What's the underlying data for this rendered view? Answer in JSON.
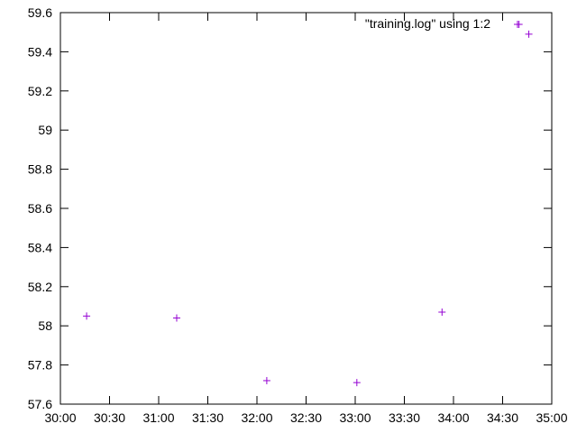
{
  "chart_data": {
    "type": "scatter",
    "title": "",
    "xlabel": "",
    "ylabel": "",
    "x_axis": {
      "min": "30:00",
      "max": "35:00",
      "tick_labels": [
        "30:00",
        "30:30",
        "31:00",
        "31:30",
        "32:00",
        "32:30",
        "33:00",
        "33:30",
        "34:00",
        "34:30",
        "35:00"
      ]
    },
    "y_axis": {
      "min": 57.6,
      "max": 59.6,
      "tick_labels": [
        "57.6",
        "57.8",
        "58",
        "58.2",
        "58.4",
        "58.6",
        "58.8",
        "59",
        "59.2",
        "59.4",
        "59.6"
      ]
    },
    "grid": false,
    "legend_position": "top-right",
    "series": [
      {
        "name": "\"training.log\" using 1:2",
        "color": "#9400d3",
        "marker": "plus",
        "points": [
          {
            "x": "30:16",
            "y": 58.05
          },
          {
            "x": "31:11",
            "y": 58.04
          },
          {
            "x": "32:06",
            "y": 57.72
          },
          {
            "x": "33:01",
            "y": 57.71
          },
          {
            "x": "33:53",
            "y": 58.07
          },
          {
            "x": "34:40",
            "y": 59.54
          },
          {
            "x": "34:46",
            "y": 59.49
          }
        ]
      }
    ]
  }
}
